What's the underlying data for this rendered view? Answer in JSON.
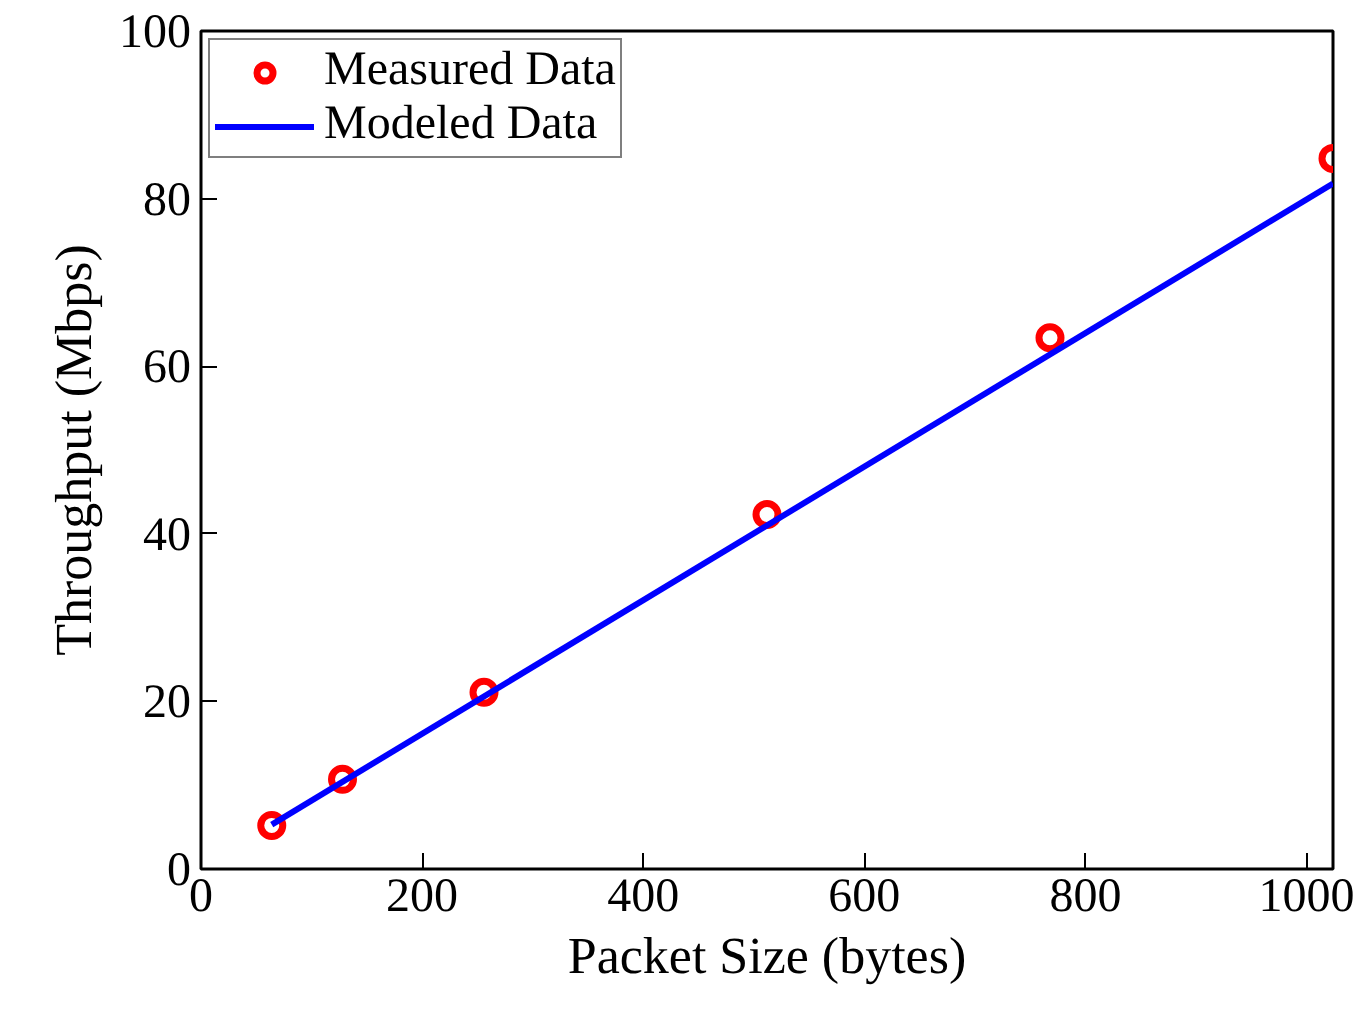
{
  "chart_data": {
    "type": "scatter",
    "xlabel": "Packet Size (bytes)",
    "ylabel": "Throughput (Mbps)",
    "xlim": [
      0,
      1024
    ],
    "ylim": [
      0,
      100
    ],
    "xticks": [
      0,
      200,
      400,
      600,
      800,
      1000
    ],
    "yticks": [
      0,
      20,
      40,
      60,
      80,
      100
    ],
    "grid": false,
    "legend": "top left",
    "series": [
      {
        "name": "Measured Data",
        "marker": "circle",
        "color": "#ff0000",
        "x": [
          64,
          128,
          256,
          512,
          768,
          1024
        ],
        "values": [
          5.2,
          10.7,
          21.1,
          42.3,
          63.4,
          84.8
        ]
      },
      {
        "name": "Modeled Data",
        "type": "line",
        "marker": "none",
        "color": "#0000ff",
        "x": [
          64,
          1024
        ],
        "values": [
          5.3,
          81.8
        ]
      }
    ]
  }
}
